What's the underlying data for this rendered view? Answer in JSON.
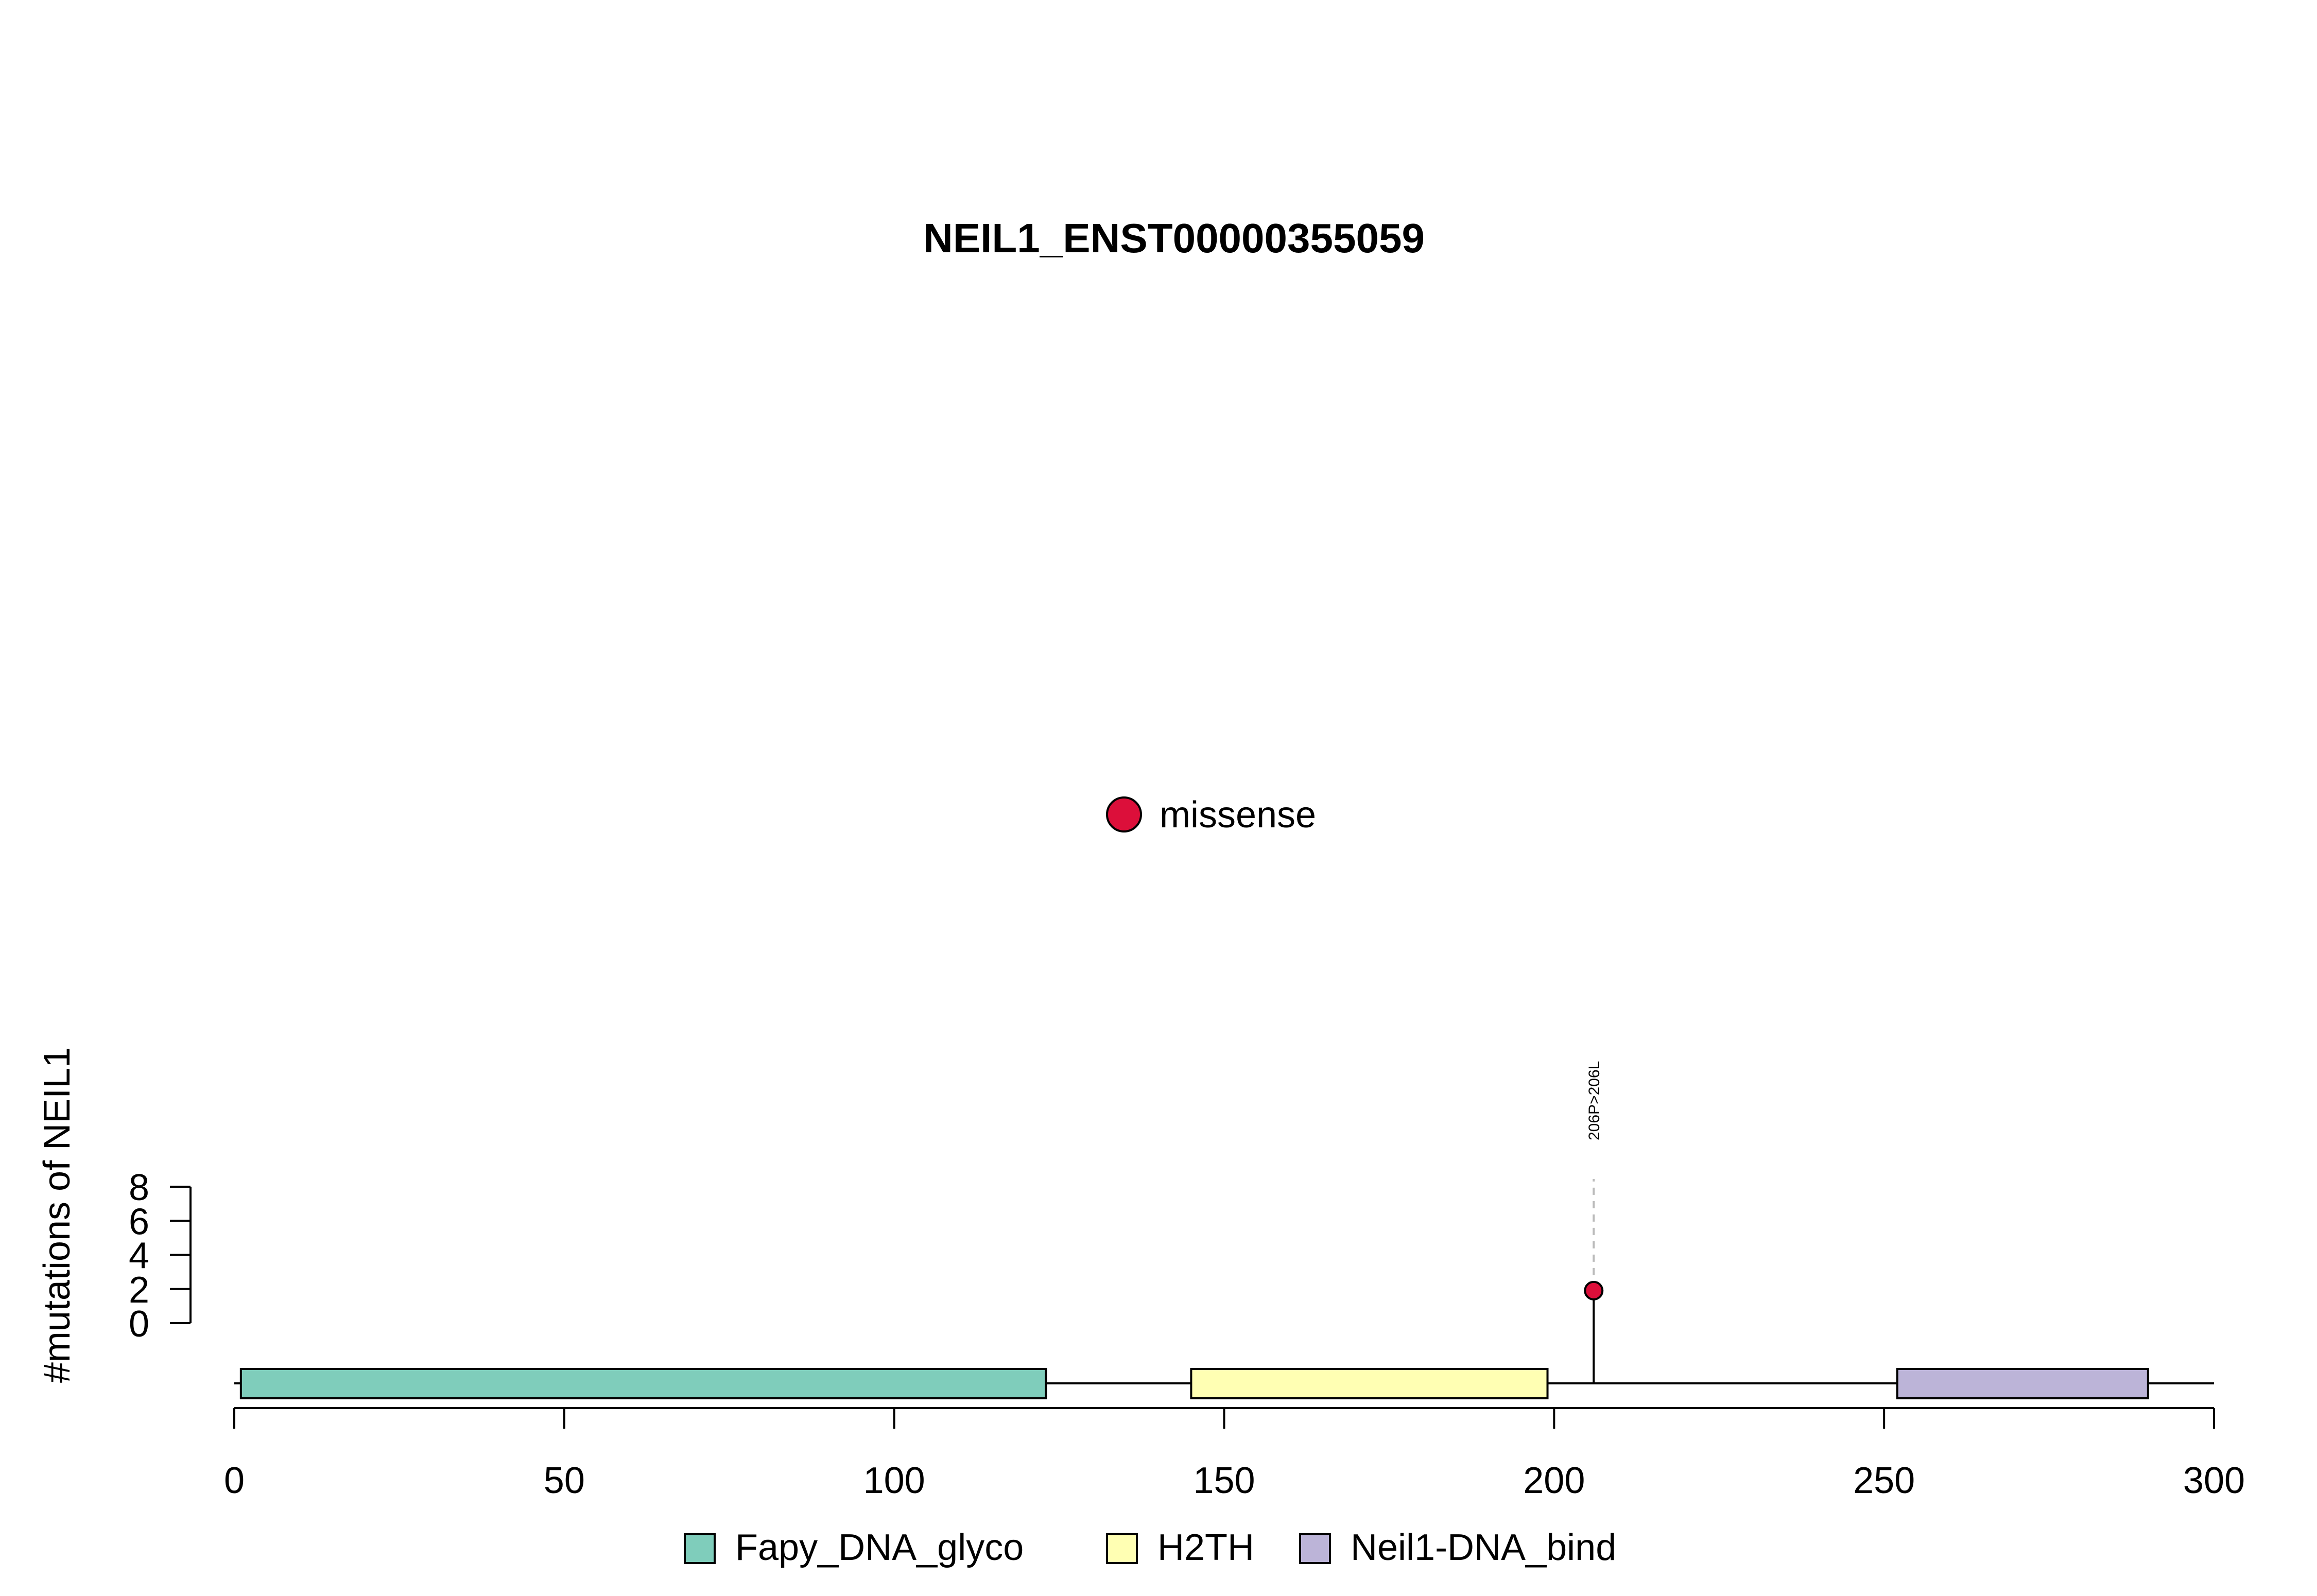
{
  "chart_data": {
    "type": "lollipop",
    "title": "NEIL1_ENST00000355059",
    "xlabel": "",
    "ylabel": "#mutations of NEIL1",
    "xlim": [
      0,
      300
    ],
    "x_ticks": [
      0,
      50,
      100,
      150,
      200,
      250,
      300
    ],
    "ylim": [
      0,
      8
    ],
    "y_ticks": [
      0,
      2,
      4,
      6,
      8
    ],
    "protein_length": 300,
    "domains": [
      {
        "name": "Fapy_DNA_glyco",
        "start": 1,
        "end": 123,
        "color": "#7fcdbb"
      },
      {
        "name": "H2TH",
        "start": 145,
        "end": 199,
        "color": "#ffffb3"
      },
      {
        "name": "Neil1-DNA_bind",
        "start": 252,
        "end": 290,
        "color": "#bcb4d8"
      }
    ],
    "mutations": [
      {
        "position": 206,
        "count": 1,
        "label": "206P>206L",
        "type": "missense"
      }
    ],
    "mutation_legend": [
      {
        "type": "missense",
        "label": "missense",
        "color": "#dc0f3a"
      }
    ],
    "domain_legend": [
      {
        "label": "Fapy_DNA_glyco",
        "color": "#7fcdbb"
      },
      {
        "label": "H2TH",
        "color": "#ffffb3"
      },
      {
        "label": "Neil1-DNA_bind",
        "color": "#bcb4d8"
      }
    ],
    "grid": false
  }
}
